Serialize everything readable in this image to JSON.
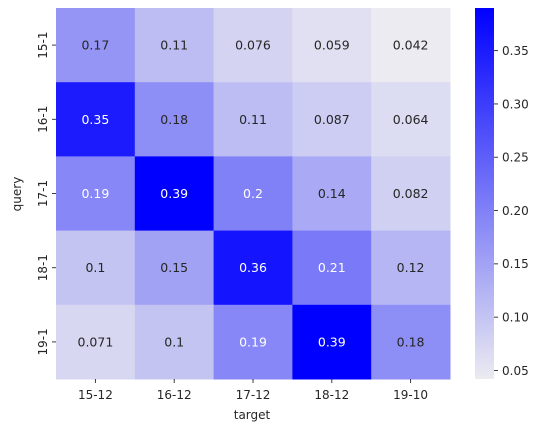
{
  "chart_data": {
    "type": "heatmap",
    "title": "",
    "xlabel": "target",
    "ylabel": "query",
    "x_categories": [
      "15-12",
      "16-12",
      "17-12",
      "18-12",
      "19-10"
    ],
    "y_categories": [
      "15-1",
      "16-1",
      "17-1",
      "18-1",
      "19-1"
    ],
    "values": [
      [
        0.17,
        0.11,
        0.076,
        0.059,
        0.042
      ],
      [
        0.35,
        0.18,
        0.11,
        0.087,
        0.064
      ],
      [
        0.19,
        0.39,
        0.2,
        0.14,
        0.082
      ],
      [
        0.1,
        0.15,
        0.36,
        0.21,
        0.12
      ],
      [
        0.071,
        0.1,
        0.19,
        0.39,
        0.18
      ]
    ],
    "value_labels": [
      [
        "0.17",
        "0.11",
        "0.076",
        "0.059",
        "0.042"
      ],
      [
        "0.35",
        "0.18",
        "0.11",
        "0.087",
        "0.064"
      ],
      [
        "0.19",
        "0.39",
        "0.2",
        "0.14",
        "0.082"
      ],
      [
        "0.1",
        "0.15",
        "0.36",
        "0.21",
        "0.12"
      ],
      [
        "0.071",
        "0.1",
        "0.19",
        "0.39",
        "0.18"
      ]
    ],
    "color_range": [
      0.042,
      0.39
    ],
    "colormap": {
      "low": "#ebebf1",
      "high": "#0000ff"
    },
    "colorbar": {
      "ticks": [
        0.05,
        0.1,
        0.15,
        0.2,
        0.25,
        0.3,
        0.35
      ],
      "tick_labels": [
        "0.05",
        "0.10",
        "0.15",
        "0.20",
        "0.25",
        "0.30",
        "0.35"
      ]
    },
    "text_colors": {
      "dark": "#262626",
      "light": "#ffffff"
    }
  }
}
